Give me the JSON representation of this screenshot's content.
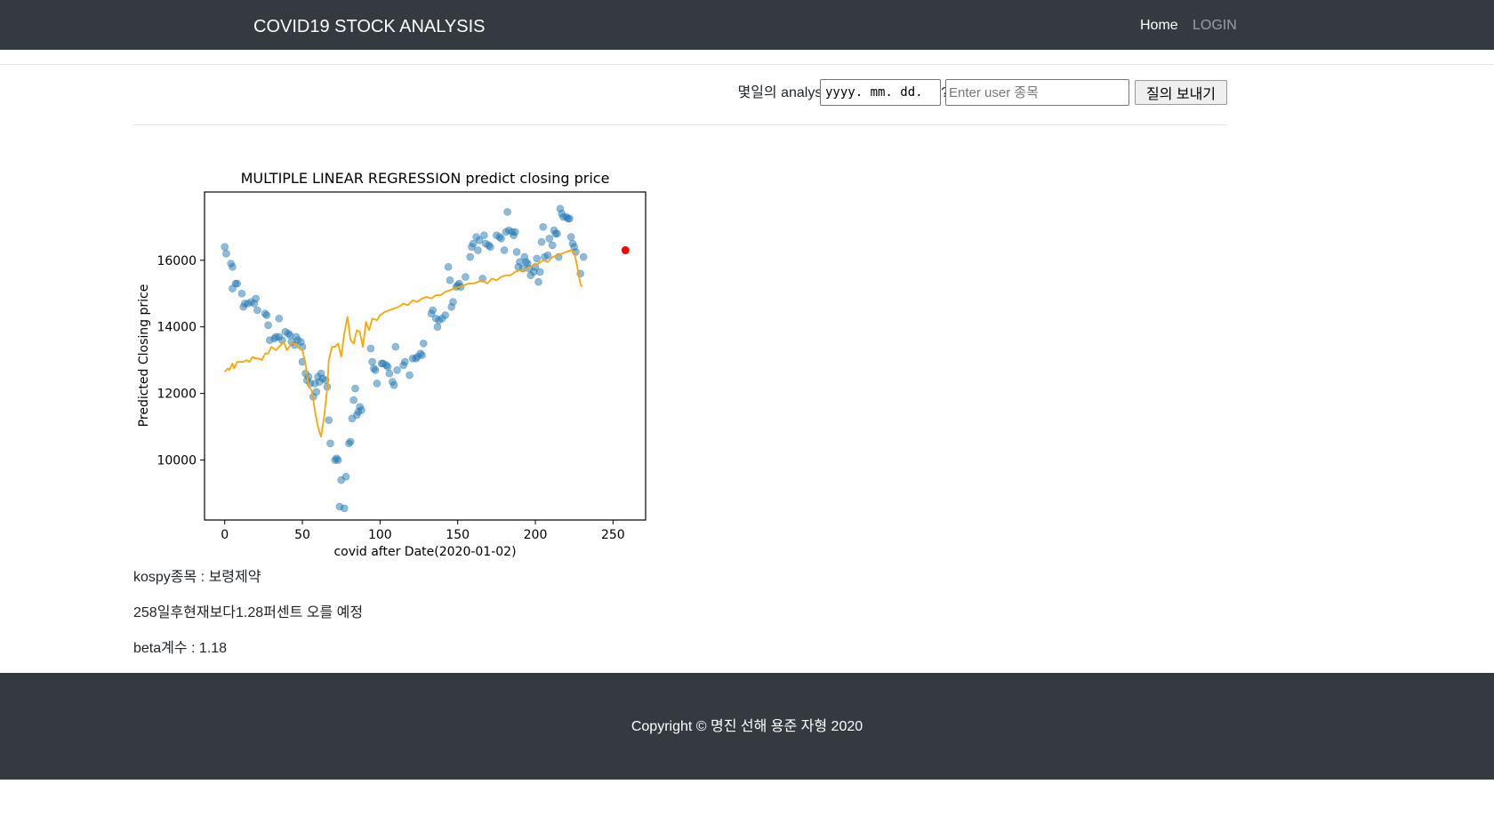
{
  "navbar": {
    "brand": "COVID19 STOCK ANALYSIS",
    "home": "Home",
    "login": "LOGIN"
  },
  "query": {
    "label": "몇일의 analysis를 보고싶으십니까?",
    "date_placeholder": "yyyy. mm. dd.",
    "stock_placeholder": "Enter user 종목",
    "submit_label": "질의 보내기"
  },
  "chart_data": {
    "type": "scatter",
    "title": "MULTIPLE LINEAR REGRESSION predict closing price",
    "xlabel": "covid after Date(2020-01-02)",
    "ylabel": "Predicted Closing price",
    "xlim": [
      -13,
      271
    ],
    "ylim": [
      8200,
      18050
    ],
    "xticks": [
      0,
      50,
      100,
      150,
      200,
      250
    ],
    "yticks": [
      10000,
      12000,
      14000,
      16000
    ],
    "grid": false,
    "series": [
      {
        "kind": "scatter",
        "color": "#1f77b4",
        "points": [
          [
            0,
            16400
          ],
          [
            1,
            16200
          ],
          [
            4,
            15900
          ],
          [
            5,
            15800
          ],
          [
            5,
            15150
          ],
          [
            7,
            15300
          ],
          [
            8,
            15300
          ],
          [
            11,
            15000
          ],
          [
            12,
            14600
          ],
          [
            13,
            14700
          ],
          [
            15,
            14700
          ],
          [
            17,
            14750
          ],
          [
            19,
            14700
          ],
          [
            20,
            14850
          ],
          [
            21,
            14500
          ],
          [
            26,
            14400
          ],
          [
            27,
            14350
          ],
          [
            28,
            14050
          ],
          [
            29,
            13600
          ],
          [
            32,
            13650
          ],
          [
            33,
            13700
          ],
          [
            35,
            13700
          ],
          [
            35,
            14250
          ],
          [
            37,
            13600
          ],
          [
            39,
            13850
          ],
          [
            41,
            13800
          ],
          [
            42,
            13750
          ],
          [
            43,
            13550
          ],
          [
            45,
            13450
          ],
          [
            46,
            13700
          ],
          [
            47,
            13600
          ],
          [
            49,
            13550
          ],
          [
            50,
            13400
          ],
          [
            50,
            12950
          ],
          [
            52,
            12600
          ],
          [
            53,
            12400
          ],
          [
            54,
            12500
          ],
          [
            55,
            12300
          ],
          [
            57,
            11900
          ],
          [
            58,
            12300
          ],
          [
            59,
            12050
          ],
          [
            60,
            12500
          ],
          [
            61,
            12350
          ],
          [
            62,
            12600
          ],
          [
            63,
            12450
          ],
          [
            65,
            12400
          ],
          [
            66,
            12200
          ],
          [
            67,
            11200
          ],
          [
            68,
            10500
          ],
          [
            71,
            10000
          ],
          [
            72,
            10050
          ],
          [
            73,
            10000
          ],
          [
            74,
            8600
          ],
          [
            75,
            9400
          ],
          [
            77,
            8550
          ],
          [
            78,
            9500
          ],
          [
            80,
            10500
          ],
          [
            81,
            10550
          ],
          [
            82,
            11250
          ],
          [
            83,
            11800
          ],
          [
            84,
            12150
          ],
          [
            85,
            11350
          ],
          [
            86,
            11450
          ],
          [
            87,
            11600
          ],
          [
            88,
            11500
          ],
          [
            94,
            13350
          ],
          [
            95,
            12950
          ],
          [
            96,
            12750
          ],
          [
            97,
            12700
          ],
          [
            98,
            12300
          ],
          [
            101,
            12900
          ],
          [
            102,
            12900
          ],
          [
            104,
            12850
          ],
          [
            105,
            12800
          ],
          [
            106,
            12600
          ],
          [
            108,
            12350
          ],
          [
            109,
            12250
          ],
          [
            110,
            13400
          ],
          [
            111,
            12700
          ],
          [
            115,
            12850
          ],
          [
            116,
            12950
          ],
          [
            119,
            12550
          ],
          [
            121,
            13050
          ],
          [
            123,
            13050
          ],
          [
            124,
            13100
          ],
          [
            126,
            13200
          ],
          [
            127,
            13150
          ],
          [
            128,
            13500
          ],
          [
            133,
            14400
          ],
          [
            134,
            14500
          ],
          [
            136,
            14250
          ],
          [
            137,
            14000
          ],
          [
            138,
            14200
          ],
          [
            140,
            14250
          ],
          [
            142,
            14350
          ],
          [
            144,
            15800
          ],
          [
            145,
            15400
          ],
          [
            146,
            14600
          ],
          [
            147,
            14750
          ],
          [
            149,
            15200
          ],
          [
            150,
            15250
          ],
          [
            151,
            15300
          ],
          [
            152,
            15200
          ],
          [
            155,
            15500
          ],
          [
            158,
            16100
          ],
          [
            159,
            16400
          ],
          [
            160,
            16500
          ],
          [
            162,
            16700
          ],
          [
            163,
            16300
          ],
          [
            164,
            16600
          ],
          [
            166,
            15450
          ],
          [
            167,
            16750
          ],
          [
            168,
            16500
          ],
          [
            170,
            16450
          ],
          [
            171,
            16400
          ],
          [
            175,
            16750
          ],
          [
            177,
            16700
          ],
          [
            178,
            16650
          ],
          [
            180,
            16300
          ],
          [
            181,
            16850
          ],
          [
            182,
            17450
          ],
          [
            183,
            16900
          ],
          [
            185,
            16850
          ],
          [
            186,
            16750
          ],
          [
            187,
            16850
          ],
          [
            188,
            16250
          ],
          [
            189,
            15800
          ],
          [
            190,
            15950
          ],
          [
            192,
            15750
          ],
          [
            193,
            16100
          ],
          [
            194,
            15950
          ],
          [
            195,
            15900
          ],
          [
            196,
            15750
          ],
          [
            197,
            15550
          ],
          [
            199,
            15650
          ],
          [
            200,
            15800
          ],
          [
            201,
            16050
          ],
          [
            202,
            15350
          ],
          [
            203,
            15650
          ],
          [
            204,
            16550
          ],
          [
            205,
            17000
          ],
          [
            206,
            16100
          ],
          [
            208,
            16150
          ],
          [
            209,
            16650
          ],
          [
            211,
            16450
          ],
          [
            212,
            16900
          ],
          [
            213,
            16800
          ],
          [
            214,
            16800
          ],
          [
            215,
            16100
          ],
          [
            216,
            17550
          ],
          [
            217,
            17400
          ],
          [
            218,
            17300
          ],
          [
            220,
            17300
          ],
          [
            221,
            17250
          ],
          [
            222,
            17250
          ],
          [
            223,
            16700
          ],
          [
            224,
            16500
          ],
          [
            225,
            16400
          ],
          [
            226,
            16250
          ],
          [
            229,
            15600
          ],
          [
            231,
            16100
          ]
        ]
      },
      {
        "kind": "line",
        "color": "#ffa500",
        "points": [
          [
            0,
            12650
          ],
          [
            2,
            12750
          ],
          [
            3,
            12700
          ],
          [
            5,
            12900
          ],
          [
            6,
            12750
          ],
          [
            8,
            12950
          ],
          [
            12,
            12950
          ],
          [
            14,
            13000
          ],
          [
            16,
            12950
          ],
          [
            18,
            13100
          ],
          [
            20,
            13050
          ],
          [
            22,
            13050
          ],
          [
            24,
            13000
          ],
          [
            26,
            13200
          ],
          [
            28,
            13200
          ],
          [
            30,
            13400
          ],
          [
            33,
            13300
          ],
          [
            35,
            13400
          ],
          [
            38,
            13550
          ],
          [
            40,
            13300
          ],
          [
            43,
            13500
          ],
          [
            46,
            13500
          ],
          [
            48,
            13350
          ],
          [
            50,
            13300
          ],
          [
            52,
            12900
          ],
          [
            54,
            12200
          ],
          [
            56,
            12100
          ],
          [
            58,
            11500
          ],
          [
            60,
            11000
          ],
          [
            62,
            10700
          ],
          [
            64,
            11300
          ],
          [
            66,
            12150
          ],
          [
            67,
            13000
          ],
          [
            69,
            13400
          ],
          [
            71,
            13400
          ],
          [
            73,
            13500
          ],
          [
            75,
            13100
          ],
          [
            77,
            13800
          ],
          [
            79,
            14300
          ],
          [
            81,
            13600
          ],
          [
            83,
            13500
          ],
          [
            85,
            13900
          ],
          [
            87,
            13850
          ],
          [
            89,
            13400
          ],
          [
            91,
            14150
          ],
          [
            93,
            13900
          ],
          [
            95,
            14250
          ],
          [
            98,
            14200
          ],
          [
            100,
            14350
          ],
          [
            103,
            14450
          ],
          [
            106,
            14500
          ],
          [
            109,
            14550
          ],
          [
            112,
            14600
          ],
          [
            115,
            14700
          ],
          [
            118,
            14650
          ],
          [
            121,
            14800
          ],
          [
            124,
            14750
          ],
          [
            127,
            14850
          ],
          [
            130,
            14900
          ],
          [
            133,
            14850
          ],
          [
            136,
            14950
          ],
          [
            139,
            14950
          ],
          [
            142,
            15050
          ],
          [
            145,
            15100
          ],
          [
            148,
            15150
          ],
          [
            151,
            15200
          ],
          [
            154,
            15250
          ],
          [
            157,
            15300
          ],
          [
            160,
            15300
          ],
          [
            163,
            15350
          ],
          [
            166,
            15400
          ],
          [
            169,
            15300
          ],
          [
            172,
            15450
          ],
          [
            175,
            15400
          ],
          [
            178,
            15500
          ],
          [
            181,
            15550
          ],
          [
            184,
            15550
          ],
          [
            187,
            15650
          ],
          [
            190,
            15700
          ],
          [
            193,
            15700
          ],
          [
            196,
            15800
          ],
          [
            199,
            15850
          ],
          [
            202,
            15900
          ],
          [
            205,
            16000
          ],
          [
            208,
            15950
          ],
          [
            211,
            16100
          ],
          [
            214,
            16150
          ],
          [
            217,
            16200
          ],
          [
            220,
            16250
          ],
          [
            223,
            16300
          ],
          [
            225,
            16250
          ],
          [
            227,
            15800
          ],
          [
            229,
            15300
          ],
          [
            230,
            15200
          ]
        ]
      },
      {
        "kind": "marker",
        "color": "#ff0000",
        "points": [
          [
            258,
            16300
          ]
        ]
      }
    ]
  },
  "results": {
    "stock_line": "kospy종목 : 보령제약",
    "prediction_line": "258일후현재보다1.28퍼센트 오를 예정",
    "beta_line": "beta계수 : 1.18"
  },
  "footer": {
    "copyright": "Copyright © 명진 선해 용준 자형 2020"
  }
}
